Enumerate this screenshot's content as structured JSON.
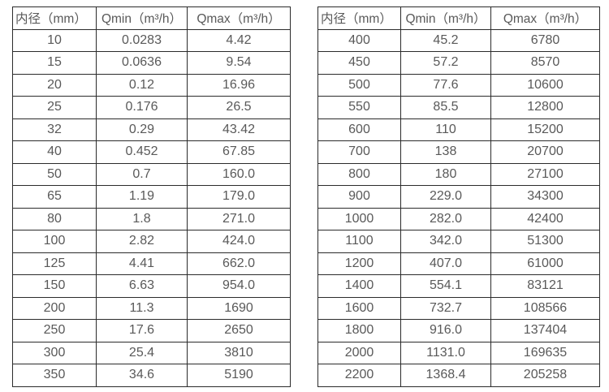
{
  "tables": [
    {
      "name": "flow-table-small-diameters",
      "headers": [
        "内径（mm）",
        "Qmin（m³/h）",
        "Qmax（m³/h）"
      ],
      "rows": [
        [
          "10",
          "0.0283",
          "4.42"
        ],
        [
          "15",
          "0.0636",
          "9.54"
        ],
        [
          "20",
          "0.12",
          "16.96"
        ],
        [
          "25",
          "0.176",
          "26.5"
        ],
        [
          "32",
          "0.29",
          "43.42"
        ],
        [
          "40",
          "0.452",
          "67.85"
        ],
        [
          "50",
          "0.7",
          "160.0"
        ],
        [
          "65",
          "1.19",
          "179.0"
        ],
        [
          "80",
          "1.8",
          "271.0"
        ],
        [
          "100",
          "2.82",
          "424.0"
        ],
        [
          "125",
          "4.41",
          "662.0"
        ],
        [
          "150",
          "6.63",
          "954.0"
        ],
        [
          "200",
          "11.3",
          "1690"
        ],
        [
          "250",
          "17.6",
          "2650"
        ],
        [
          "300",
          "25.4",
          "3810"
        ],
        [
          "350",
          "34.6",
          "5190"
        ]
      ]
    },
    {
      "name": "flow-table-large-diameters",
      "headers": [
        "内径（mm）",
        "Qmin（m³/h）",
        "Qmax（m³/h）"
      ],
      "rows": [
        [
          "400",
          "45.2",
          "6780"
        ],
        [
          "450",
          "57.2",
          "8570"
        ],
        [
          "500",
          "77.6",
          "10600"
        ],
        [
          "550",
          "85.5",
          "12800"
        ],
        [
          "600",
          "110",
          "15200"
        ],
        [
          "700",
          "138",
          "20700"
        ],
        [
          "800",
          "180",
          "27100"
        ],
        [
          "900",
          "229.0",
          "34300"
        ],
        [
          "1000",
          "282.0",
          "42400"
        ],
        [
          "1100",
          "342.0",
          "51300"
        ],
        [
          "1200",
          "407.0",
          "61000"
        ],
        [
          "1400",
          "554.1",
          "83121"
        ],
        [
          "1600",
          "732.7",
          "108566"
        ],
        [
          "1800",
          "916.0",
          "137404"
        ],
        [
          "2000",
          "1131.0",
          "169635"
        ],
        [
          "2200",
          "1368.4",
          "205258"
        ]
      ]
    }
  ],
  "colors": {
    "border": "#2b2b2b",
    "text": "#595959",
    "background": "#ffffff"
  }
}
